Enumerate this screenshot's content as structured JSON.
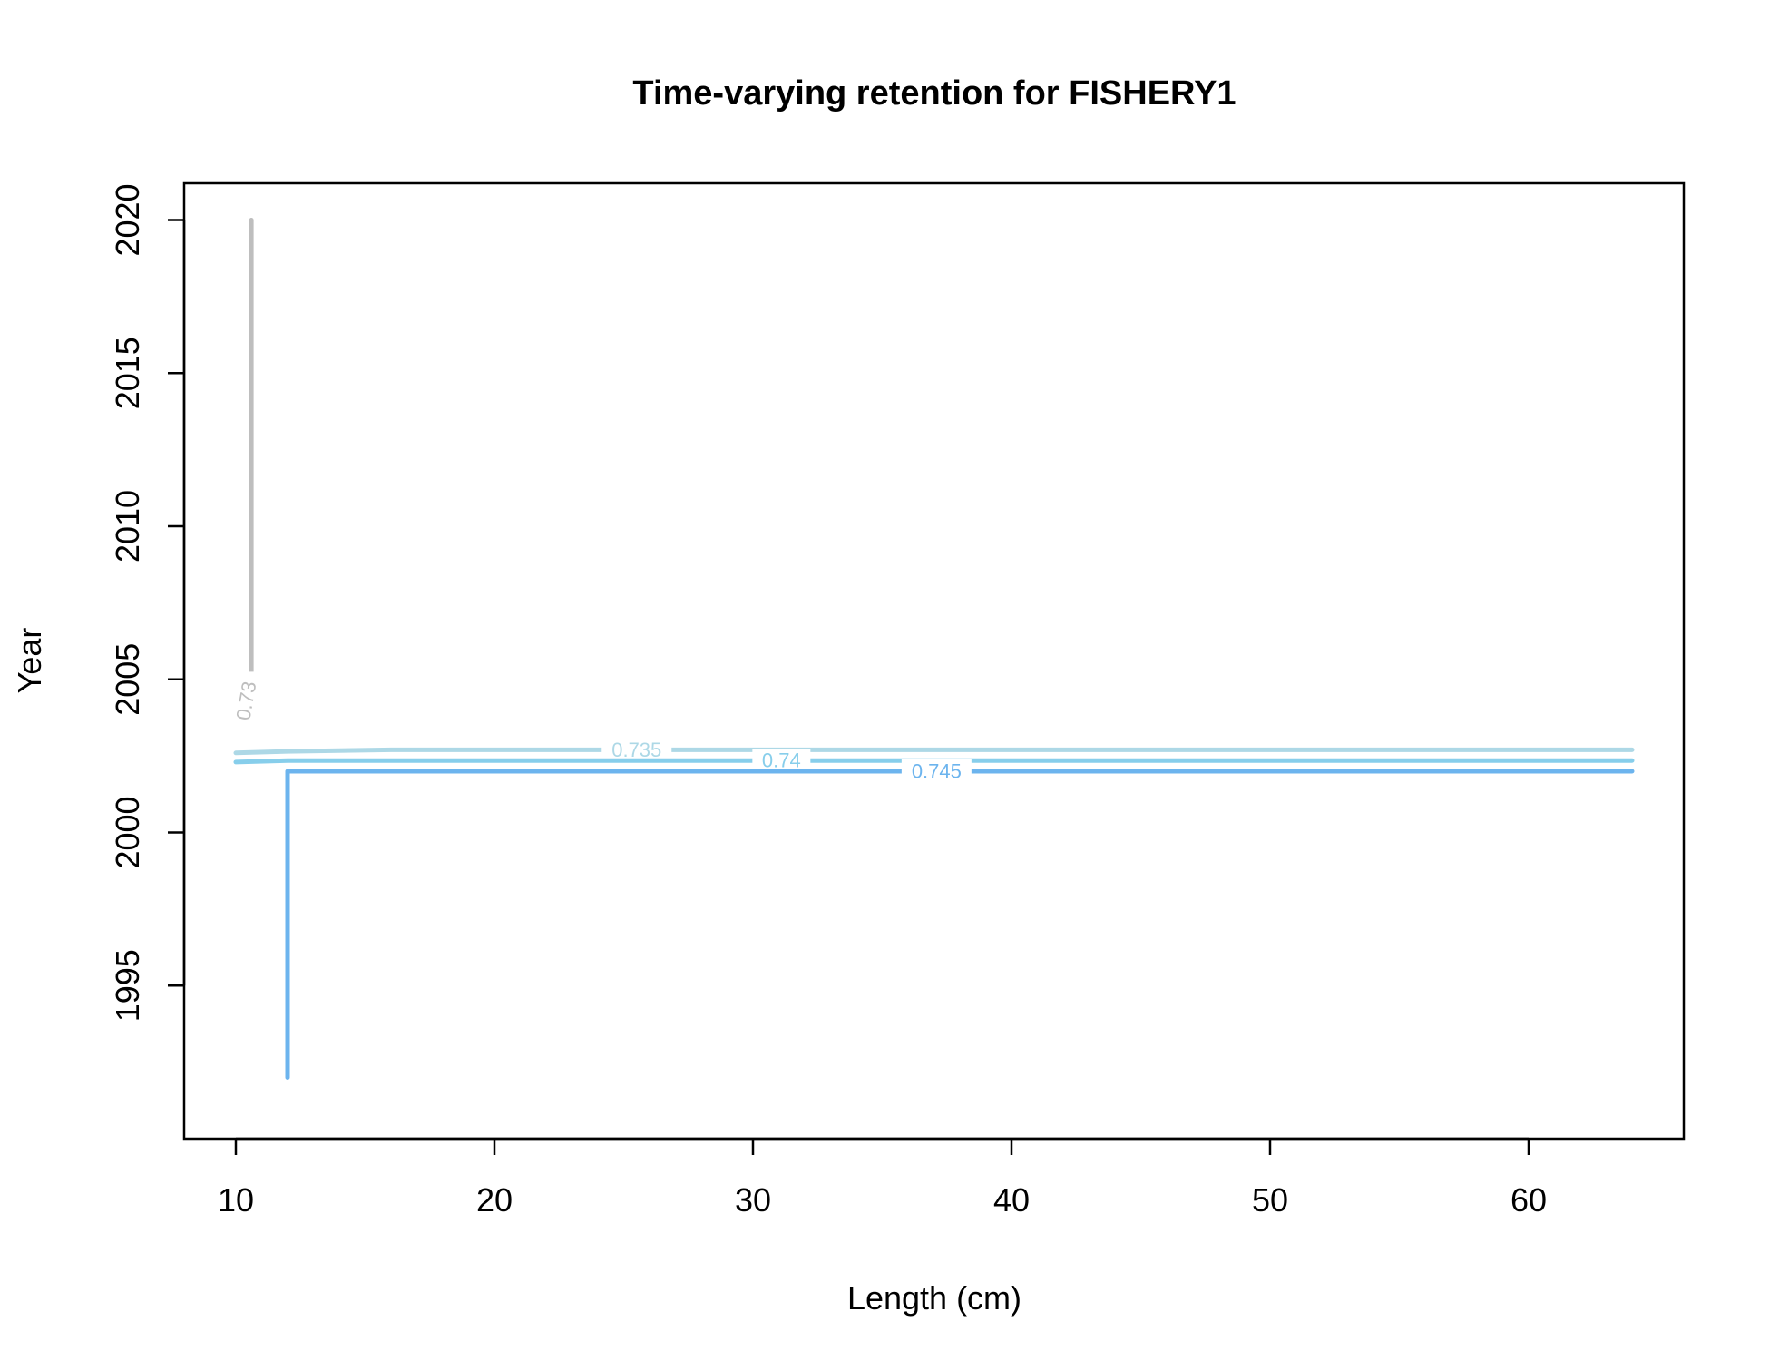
{
  "chart_data": {
    "type": "contour",
    "title": "Time-varying retention for FISHERY1",
    "xlabel": "Length (cm)",
    "ylabel": "Year",
    "xlim": [
      8,
      66
    ],
    "ylim": [
      1990,
      2021.2
    ],
    "xticks": [
      10,
      20,
      30,
      40,
      50,
      60
    ],
    "yticks": [
      1995,
      2000,
      2005,
      2010,
      2015,
      2020
    ],
    "xtick_labels": [
      "10",
      "20",
      "30",
      "40",
      "50",
      "60"
    ],
    "ytick_labels": [
      "1995",
      "2000",
      "2005",
      "2010",
      "2015",
      "2020"
    ],
    "grid": false,
    "contours": [
      {
        "level": "0.73",
        "color": "#bebebe",
        "points": [
          [
            10.6,
            2005
          ],
          [
            10.6,
            2020
          ]
        ],
        "label_at": [
          10.4,
          2004.3
        ],
        "label_vertical": true
      },
      {
        "level": "0.735",
        "color": "#add8e6",
        "points": [
          [
            10,
            2002.6
          ],
          [
            12,
            2002.65
          ],
          [
            16,
            2002.7
          ],
          [
            64,
            2002.7
          ]
        ],
        "label_at": [
          25.5,
          2002.7
        ],
        "label_vertical": false
      },
      {
        "level": "0.74",
        "color": "#87ceeb",
        "points": [
          [
            10,
            2002.3
          ],
          [
            12,
            2002.35
          ],
          [
            64,
            2002.35
          ]
        ],
        "label_at": [
          31.1,
          2002.35
        ],
        "label_vertical": false
      },
      {
        "level": "0.745",
        "color": "#6cb4ee",
        "points": [
          [
            12,
            1992
          ],
          [
            12,
            2002
          ],
          [
            64,
            2002
          ]
        ],
        "label_at": [
          37.1,
          2002
        ],
        "label_vertical": false
      }
    ]
  }
}
